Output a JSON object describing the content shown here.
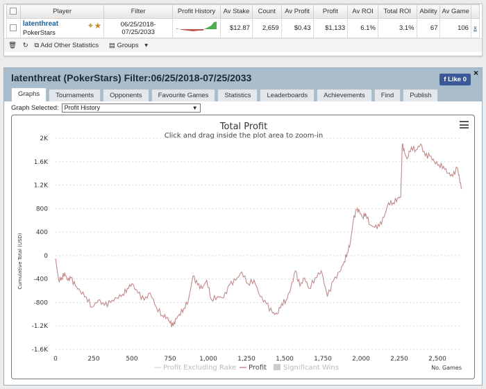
{
  "stats_table": {
    "headers": [
      "Player",
      "Filter",
      "Profit History",
      "Av Stake",
      "Count",
      "Av Profit",
      "Profit",
      "Av ROI",
      "Total ROI",
      "Ability",
      "Av Game"
    ],
    "row": {
      "player_name": "latenthreat",
      "site": "PokerStars",
      "filter_line1": "06/25/2018-",
      "filter_line2": "07/25/2033",
      "av_stake": "$12.87",
      "count": "2,659",
      "av_profit": "$0.43",
      "profit": "$1,133",
      "av_roi": "6.1%",
      "total_roi": "3.1%",
      "ability": "67",
      "av_game": "106",
      "trailing_link": "x"
    }
  },
  "toolbar": {
    "add_stats_label": "Add Other Statistics",
    "groups_label": "Groups"
  },
  "panel": {
    "title": "latenthreat (PokerStars) Filter:06/25/2018-07/25/2033",
    "like_label": "Like 0",
    "close_label": "×"
  },
  "tabs": [
    {
      "label": "Graphs",
      "active": true
    },
    {
      "label": "Tournaments"
    },
    {
      "label": "Opponents"
    },
    {
      "label": "Favourite Games"
    },
    {
      "label": "Statistics"
    },
    {
      "label": "Leaderboards"
    },
    {
      "label": "Achievements"
    },
    {
      "label": "Find"
    },
    {
      "label": "Publish"
    }
  ],
  "graph_select": {
    "label": "Graph Selected:",
    "value": "Profit History"
  },
  "colors": {
    "profit_line": "#c08a8a",
    "title_bar": "#a8bccb",
    "sparkline_neg": "#c0504d",
    "sparkline_pos": "#4caf50",
    "link": "#1b5e9a"
  },
  "chart_data": {
    "type": "line",
    "title": "Total Profit",
    "subtitle": "Click and drag inside the plot area to zoom-in",
    "ylabel": "Cumulative Total (USD)",
    "xlabel": "No. Games",
    "xlim": [
      0,
      2659
    ],
    "ylim": [
      -1600,
      2000
    ],
    "x_ticks": [
      "0",
      "250",
      "500",
      "750",
      "1,000",
      "1,250",
      "1,500",
      "1,750",
      "2,000",
      "2,250",
      "2,500"
    ],
    "y_ticks": [
      "2K",
      "1.6K",
      "1.2K",
      "800",
      "400",
      "0",
      "-400",
      "-800",
      "-1.2K",
      "-1.6K"
    ],
    "legend": [
      "Profit Excluding Rake",
      "Profit",
      "Significant Wins"
    ],
    "series": [
      {
        "name": "Profit",
        "x": [
          0,
          20,
          40,
          60,
          80,
          100,
          130,
          160,
          200,
          240,
          280,
          320,
          360,
          400,
          440,
          470,
          500,
          540,
          580,
          620,
          660,
          700,
          730,
          750,
          770,
          790,
          810,
          840,
          870,
          900,
          930,
          960,
          990,
          1020,
          1060,
          1100,
          1140,
          1180,
          1220,
          1260,
          1300,
          1340,
          1380,
          1420,
          1450,
          1480,
          1510,
          1540,
          1570,
          1600,
          1630,
          1660,
          1700,
          1740,
          1780,
          1820,
          1860,
          1890,
          1910,
          1930,
          1950,
          1970,
          1990,
          2010,
          2030,
          2060,
          2090,
          2120,
          2150,
          2180,
          2210,
          2240,
          2260,
          2270,
          2285,
          2300,
          2330,
          2360,
          2390,
          2420,
          2450,
          2480,
          2510,
          2540,
          2570,
          2600,
          2630,
          2645,
          2659
        ],
        "y": [
          -50,
          -420,
          -380,
          -300,
          -420,
          -380,
          -520,
          -600,
          -700,
          -880,
          -760,
          -850,
          -800,
          -720,
          -660,
          -560,
          -480,
          -640,
          -760,
          -640,
          -880,
          -1020,
          -1050,
          -1150,
          -1200,
          -1080,
          -1000,
          -900,
          -760,
          -350,
          -500,
          -560,
          -420,
          -750,
          -700,
          -720,
          -500,
          -420,
          -280,
          -480,
          -420,
          -700,
          -820,
          -980,
          -1000,
          -820,
          -760,
          -560,
          -260,
          -520,
          -380,
          -560,
          -380,
          -260,
          -700,
          -430,
          -280,
          -100,
          50,
          220,
          600,
          780,
          750,
          650,
          720,
          520,
          480,
          500,
          650,
          900,
          900,
          980,
          1000,
          1900,
          1750,
          1650,
          1850,
          1800,
          1900,
          1700,
          1700,
          1600,
          1550,
          1520,
          1400,
          1350,
          1500,
          1300,
          1133
        ]
      }
    ]
  }
}
